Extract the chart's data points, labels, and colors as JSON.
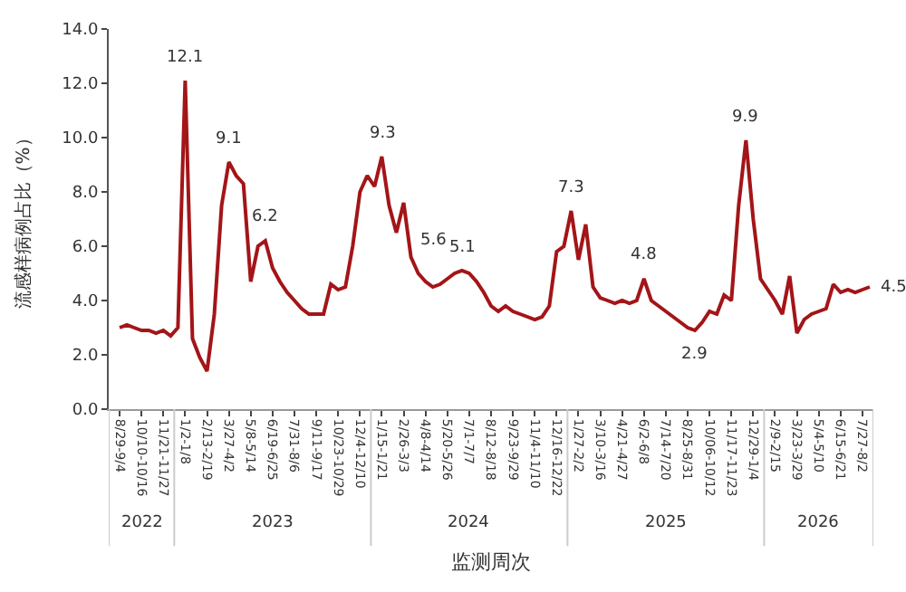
{
  "chart_data": {
    "type": "line",
    "xlabel": "监测周次",
    "ylabel": "流感样病例占比（%）",
    "categories": [
      "8/29-9/4",
      null,
      null,
      "10/10-10/16",
      null,
      null,
      "11/21-11/27",
      null,
      null,
      "1/2-1/8",
      null,
      null,
      "2/13-2/19",
      null,
      null,
      "3/27-4/2",
      null,
      null,
      "5/8-5/14",
      null,
      null,
      "6/19-6/25",
      null,
      null,
      "7/31-8/6",
      null,
      null,
      "9/11-9/17",
      null,
      null,
      "10/23-10/29",
      null,
      null,
      "12/4-12/10",
      null,
      null,
      "1/15-1/21",
      null,
      null,
      "2/26-3/3",
      null,
      null,
      "4/8-4/14",
      null,
      null,
      "5/20-5/26",
      null,
      null,
      "7/1-7/7",
      null,
      null,
      "8/12-8/18",
      null,
      null,
      "9/23-9/29",
      null,
      null,
      "11/4-11/10",
      null,
      null,
      "12/16-12/22",
      null,
      null,
      "1/27-2/2",
      null,
      null,
      "3/10-3/16",
      null,
      null,
      "4/21-4/27",
      null,
      null,
      "6/2-6/8",
      null,
      null,
      "7/14-7/20",
      null,
      null,
      "8/25-8/31",
      null,
      null,
      "10/06-10/12",
      null,
      null,
      "11/17-11/23",
      null,
      null,
      "12/29-1/4",
      null,
      null,
      "2/9-2/15",
      null,
      null,
      "3/23-3/29",
      null,
      null,
      "5/4-5/10",
      null,
      null,
      "6/15-6/21",
      null,
      null,
      "7/27-8/2",
      null
    ],
    "series": [
      {
        "color": "#a31518",
        "values": [
          3.0,
          3.1,
          3.0,
          2.9,
          2.9,
          2.8,
          2.9,
          2.7,
          3.0,
          12.1,
          2.6,
          1.9,
          1.4,
          3.5,
          7.5,
          9.1,
          8.6,
          8.3,
          4.7,
          6.0,
          6.2,
          5.2,
          4.7,
          4.3,
          4.0,
          3.7,
          3.5,
          3.5,
          3.5,
          4.6,
          4.4,
          4.5,
          6.0,
          8.0,
          8.6,
          8.2,
          9.3,
          7.5,
          6.5,
          7.6,
          5.6,
          5.0,
          4.7,
          4.5,
          4.6,
          4.8,
          5.0,
          5.1,
          5.0,
          4.7,
          4.3,
          3.8,
          3.6,
          3.8,
          3.6,
          3.5,
          3.4,
          3.3,
          3.4,
          3.8,
          5.8,
          6.0,
          7.3,
          5.5,
          6.8,
          4.5,
          4.1,
          4.0,
          3.9,
          4.0,
          3.9,
          4.0,
          4.8,
          4.0,
          3.8,
          3.6,
          3.4,
          3.2,
          3.0,
          2.9,
          3.2,
          3.6,
          3.5,
          4.2,
          4.0,
          7.5,
          9.9,
          7.0,
          4.8,
          4.4,
          4.0,
          3.5,
          4.9,
          2.8,
          3.3,
          3.5,
          3.6,
          3.7,
          4.6,
          4.3,
          4.4,
          4.3,
          4.4,
          4.5
        ],
        "value_labels": [
          null,
          null,
          null,
          null,
          null,
          null,
          null,
          null,
          null,
          "12.1",
          null,
          null,
          null,
          null,
          null,
          "9.1",
          null,
          null,
          null,
          null,
          "6.2",
          null,
          null,
          null,
          null,
          null,
          null,
          null,
          null,
          null,
          null,
          null,
          null,
          null,
          null,
          null,
          "9.3",
          null,
          null,
          null,
          "5.6",
          null,
          null,
          null,
          null,
          null,
          null,
          "5.1",
          null,
          null,
          null,
          null,
          null,
          null,
          null,
          null,
          null,
          null,
          null,
          null,
          null,
          null,
          "7.3",
          null,
          null,
          null,
          null,
          null,
          null,
          null,
          null,
          null,
          "4.8",
          null,
          null,
          null,
          null,
          null,
          null,
          "2.9",
          null,
          null,
          null,
          null,
          null,
          null,
          "9.9",
          null,
          null,
          null,
          null,
          null,
          null,
          null,
          null,
          null,
          null,
          null,
          null,
          null,
          null,
          null,
          null,
          "4.5"
        ]
      }
    ],
    "ylim": [
      0,
      14
    ],
    "yticks": [
      {
        "value": 0,
        "label": "0.0"
      },
      {
        "value": 2,
        "label": "2.0"
      },
      {
        "value": 4,
        "label": "4.0"
      },
      {
        "value": 6,
        "label": "6.0"
      },
      {
        "value": 8,
        "label": "8.0"
      },
      {
        "value": 10,
        "label": "10.0"
      },
      {
        "value": 12,
        "label": "12.0"
      },
      {
        "value": 14,
        "label": "14.0"
      }
    ],
    "annotations": [
      "2022",
      "2023",
      "2024",
      "2025",
      "2026"
    ]
  }
}
